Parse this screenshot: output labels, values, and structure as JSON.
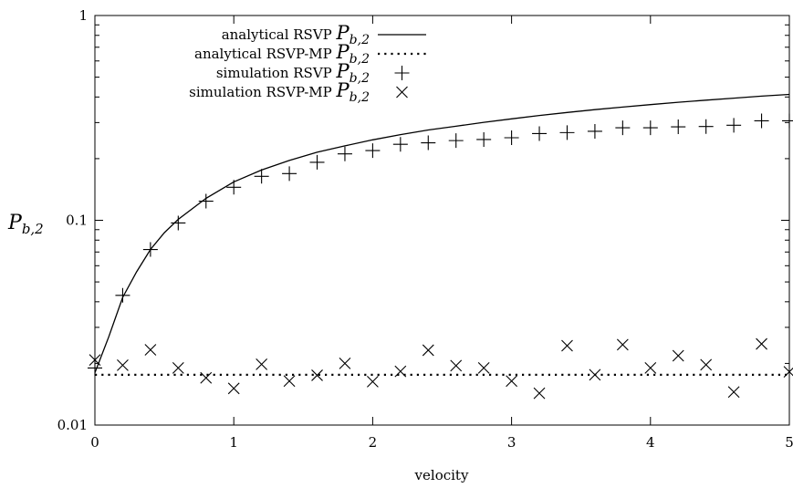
{
  "chart_data": {
    "type": "scatter",
    "xlabel": "velocity",
    "ylabel_main": "P",
    "ylabel_sub": "b,2",
    "xlim": [
      0,
      5
    ],
    "ylim": [
      0.01,
      1
    ],
    "yscale": "log",
    "grid": false,
    "legend_position": "top-left",
    "x_ticks": [
      0,
      1,
      2,
      3,
      4,
      5
    ],
    "x_tick_labels": [
      "0",
      "1",
      "2",
      "3",
      "4",
      "5"
    ],
    "y_ticks": [
      0.01,
      0.1,
      1
    ],
    "y_tick_labels": [
      "0.01",
      "0.1",
      "1"
    ],
    "series": [
      {
        "name": "analytical RSVP",
        "name_sub": "b,2",
        "style": "solid-line",
        "x": [
          0,
          0.1,
          0.2,
          0.3,
          0.4,
          0.5,
          0.6,
          0.8,
          1.0,
          1.2,
          1.4,
          1.6,
          1.8,
          2.0,
          2.2,
          2.4,
          2.6,
          2.8,
          3.0,
          3.2,
          3.4,
          3.6,
          3.8,
          4.0,
          4.2,
          4.4,
          4.6,
          4.8,
          5.0
        ],
        "y": [
          0.018,
          0.027,
          0.042,
          0.056,
          0.072,
          0.087,
          0.101,
          0.128,
          0.154,
          0.176,
          0.196,
          0.215,
          0.231,
          0.247,
          0.262,
          0.276,
          0.288,
          0.301,
          0.313,
          0.325,
          0.336,
          0.347,
          0.357,
          0.367,
          0.377,
          0.386,
          0.395,
          0.404,
          0.412
        ]
      },
      {
        "name": "analytical RSVP-MP",
        "name_sub": "b,2",
        "style": "dotted-line",
        "x": [
          0,
          5
        ],
        "y": [
          0.0176,
          0.0176
        ]
      },
      {
        "name": "simulation RSVP",
        "name_sub": "b,2",
        "style": "plus-marker",
        "x": [
          0,
          0.2,
          0.4,
          0.6,
          0.8,
          1.0,
          1.2,
          1.4,
          1.6,
          1.8,
          2.0,
          2.2,
          2.4,
          2.6,
          2.8,
          3.0,
          3.2,
          3.4,
          3.6,
          3.8,
          4.0,
          4.2,
          4.4,
          4.6,
          4.8,
          5.0
        ],
        "y": [
          0.019,
          0.043,
          0.072,
          0.097,
          0.124,
          0.145,
          0.164,
          0.169,
          0.192,
          0.211,
          0.219,
          0.235,
          0.239,
          0.245,
          0.248,
          0.253,
          0.265,
          0.268,
          0.272,
          0.283,
          0.283,
          0.286,
          0.287,
          0.291,
          0.306,
          0.306
        ]
      },
      {
        "name": "simulation RSVP-MP",
        "name_sub": "b,2",
        "style": "x-marker",
        "x": [
          0,
          0.2,
          0.4,
          0.6,
          0.8,
          1.0,
          1.2,
          1.4,
          1.6,
          1.8,
          2.0,
          2.2,
          2.4,
          2.6,
          2.8,
          3.0,
          3.2,
          3.4,
          3.6,
          3.8,
          4.0,
          4.2,
          4.4,
          4.6,
          4.8,
          5.0
        ],
        "y": [
          0.0208,
          0.0196,
          0.0233,
          0.019,
          0.017,
          0.0151,
          0.0198,
          0.0164,
          0.0175,
          0.02,
          0.0163,
          0.0183,
          0.0232,
          0.0195,
          0.019,
          0.0164,
          0.0143,
          0.0244,
          0.0176,
          0.0247,
          0.019,
          0.0218,
          0.0197,
          0.0145,
          0.0249,
          0.0182
        ]
      }
    ]
  }
}
